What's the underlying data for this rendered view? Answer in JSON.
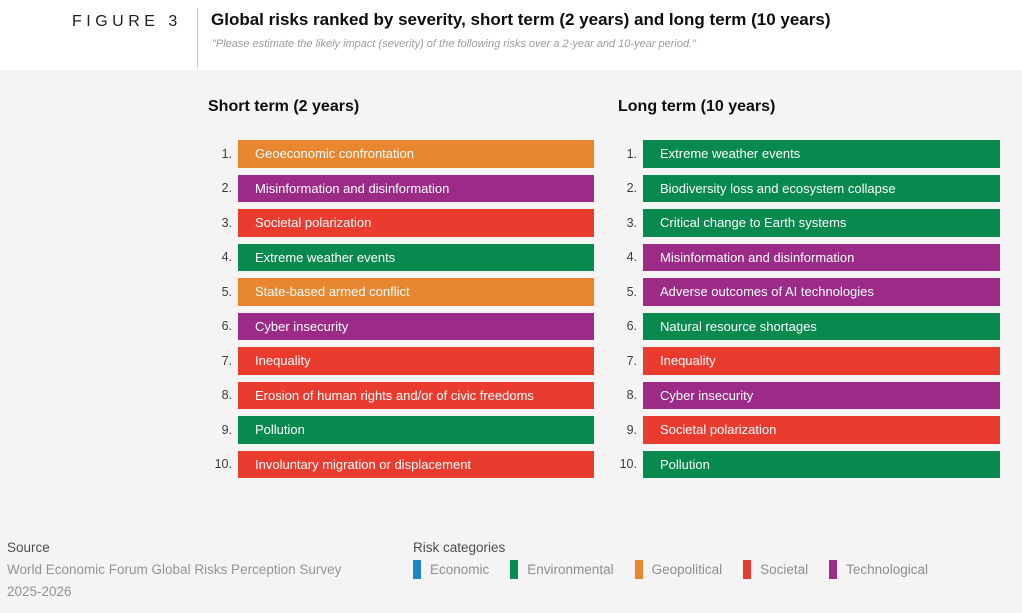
{
  "figure": {
    "label": "FIGURE 3",
    "title": "Global risks ranked by severity, short term (2 years) and long term (10 years)",
    "subtitle": "\"Please estimate the likely impact (severity) of the following risks over a 2-year and 10-year period.\""
  },
  "footer": {
    "source_label": "Source",
    "source_line1": "World Economic Forum Global Risks Perception Survey",
    "source_line2": "2025-2026",
    "legend_title": "Risk categories"
  },
  "chart_data": {
    "type": "bar",
    "title": "Global risks ranked by severity, short term (2 years) and long term (10 years)",
    "subtitle": "\"Please estimate the likely impact (severity) of the following risks over a 2-year and 10-year period.\"",
    "legend_position": "bottom",
    "category_colors": {
      "Economic": "#1b87c9",
      "Environmental": "#08894e",
      "Geopolitical": "#e8872f",
      "Societal": "#e93c2f",
      "Technological": "#9b2b87"
    },
    "legend": [
      "Economic",
      "Environmental",
      "Geopolitical",
      "Societal",
      "Technological"
    ],
    "panels": [
      {
        "heading": "Short term (2 years)",
        "items": [
          {
            "rank": "1.",
            "label": "Geoeconomic confrontation",
            "category": "Geopolitical"
          },
          {
            "rank": "2.",
            "label": "Misinformation and disinformation",
            "category": "Technological"
          },
          {
            "rank": "3.",
            "label": "Societal polarization",
            "category": "Societal"
          },
          {
            "rank": "4.",
            "label": "Extreme weather events",
            "category": "Environmental"
          },
          {
            "rank": "5.",
            "label": "State-based armed conflict",
            "category": "Geopolitical"
          },
          {
            "rank": "6.",
            "label": "Cyber insecurity",
            "category": "Technological"
          },
          {
            "rank": "7.",
            "label": "Inequality",
            "category": "Societal"
          },
          {
            "rank": "8.",
            "label": "Erosion of human rights and/or of civic freedoms",
            "category": "Societal"
          },
          {
            "rank": "9.",
            "label": "Pollution",
            "category": "Environmental"
          },
          {
            "rank": "10.",
            "label": "Involuntary migration or displacement",
            "category": "Societal"
          }
        ]
      },
      {
        "heading": "Long term (10 years)",
        "items": [
          {
            "rank": "1.",
            "label": "Extreme weather events",
            "category": "Environmental"
          },
          {
            "rank": "2.",
            "label": "Biodiversity loss and ecosystem collapse",
            "category": "Environmental"
          },
          {
            "rank": "3.",
            "label": "Critical change to Earth systems",
            "category": "Environmental"
          },
          {
            "rank": "4.",
            "label": "Misinformation and disinformation",
            "category": "Technological"
          },
          {
            "rank": "5.",
            "label": "Adverse outcomes of AI technologies",
            "category": "Technological"
          },
          {
            "rank": "6.",
            "label": "Natural resource shortages",
            "category": "Environmental"
          },
          {
            "rank": "7.",
            "label": "Inequality",
            "category": "Societal"
          },
          {
            "rank": "8.",
            "label": "Cyber insecurity",
            "category": "Technological"
          },
          {
            "rank": "9.",
            "label": "Societal polarization",
            "category": "Societal"
          },
          {
            "rank": "10.",
            "label": "Pollution",
            "category": "Environmental"
          }
        ]
      }
    ]
  }
}
